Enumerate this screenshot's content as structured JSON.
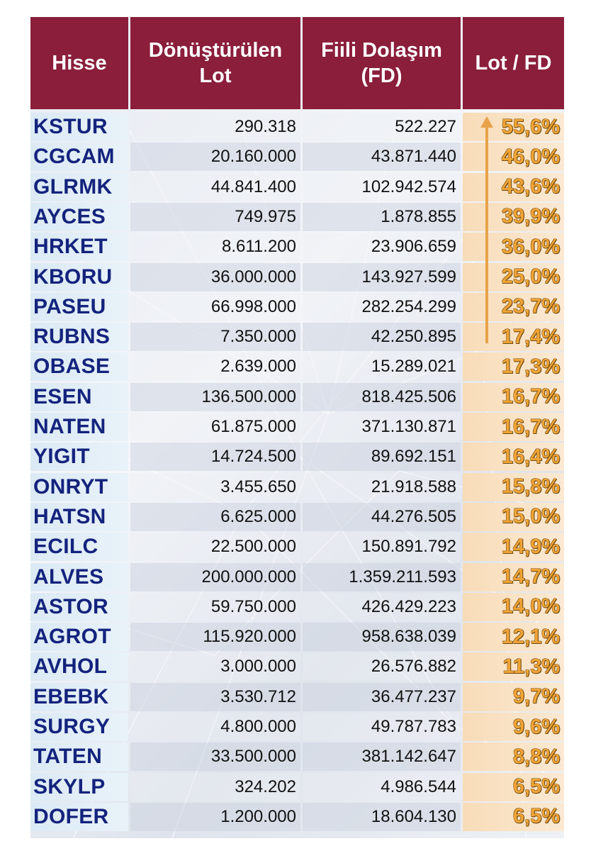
{
  "header": {
    "hisse": "Hisse",
    "lot_line1": "Dönüştürülen",
    "lot_line2": "Lot",
    "fd_line1": "Fiili Dolaşım",
    "fd_line2": "(FD)",
    "ratio": "Lot / FD"
  },
  "colors": {
    "header_bg": "#8a1e3b",
    "ticker_text": "#14237d",
    "ratio_text": "#f0a335",
    "arrow": "#e8a24a"
  },
  "rows": [
    {
      "ticker": "KSTUR",
      "lot": "290.318",
      "fd": "522.227",
      "ratio": "55,6%"
    },
    {
      "ticker": "CGCAM",
      "lot": "20.160.000",
      "fd": "43.871.440",
      "ratio": "46,0%"
    },
    {
      "ticker": "GLRMK",
      "lot": "44.841.400",
      "fd": "102.942.574",
      "ratio": "43,6%"
    },
    {
      "ticker": "AYCES",
      "lot": "749.975",
      "fd": "1.878.855",
      "ratio": "39,9%"
    },
    {
      "ticker": "HRKET",
      "lot": "8.611.200",
      "fd": "23.906.659",
      "ratio": "36,0%"
    },
    {
      "ticker": "KBORU",
      "lot": "36.000.000",
      "fd": "143.927.599",
      "ratio": "25,0%"
    },
    {
      "ticker": "PASEU",
      "lot": "66.998.000",
      "fd": "282.254.299",
      "ratio": "23,7%"
    },
    {
      "ticker": "RUBNS",
      "lot": "7.350.000",
      "fd": "42.250.895",
      "ratio": "17,4%"
    },
    {
      "ticker": "OBASE",
      "lot": "2.639.000",
      "fd": "15.289.021",
      "ratio": "17,3%"
    },
    {
      "ticker": "ESEN",
      "lot": "136.500.000",
      "fd": "818.425.506",
      "ratio": "16,7%"
    },
    {
      "ticker": "NATEN",
      "lot": "61.875.000",
      "fd": "371.130.871",
      "ratio": "16,7%"
    },
    {
      "ticker": "YIGIT",
      "lot": "14.724.500",
      "fd": "89.692.151",
      "ratio": "16,4%"
    },
    {
      "ticker": "ONRYT",
      "lot": "3.455.650",
      "fd": "21.918.588",
      "ratio": "15,8%"
    },
    {
      "ticker": "HATSN",
      "lot": "6.625.000",
      "fd": "44.276.505",
      "ratio": "15,0%"
    },
    {
      "ticker": "ECILC",
      "lot": "22.500.000",
      "fd": "150.891.792",
      "ratio": "14,9%"
    },
    {
      "ticker": "ALVES",
      "lot": "200.000.000",
      "fd": "1.359.211.593",
      "ratio": "14,7%"
    },
    {
      "ticker": "ASTOR",
      "lot": "59.750.000",
      "fd": "426.429.223",
      "ratio": "14,0%"
    },
    {
      "ticker": "AGROT",
      "lot": "115.920.000",
      "fd": "958.638.039",
      "ratio": "12,1%"
    },
    {
      "ticker": "AVHOL",
      "lot": "3.000.000",
      "fd": "26.576.882",
      "ratio": "11,3%"
    },
    {
      "ticker": "EBEBK",
      "lot": "3.530.712",
      "fd": "36.477.237",
      "ratio": "9,7%"
    },
    {
      "ticker": "SURGY",
      "lot": "4.800.000",
      "fd": "49.787.783",
      "ratio": "9,6%"
    },
    {
      "ticker": "TATEN",
      "lot": "33.500.000",
      "fd": "381.142.647",
      "ratio": "8,8%"
    },
    {
      "ticker": "SKYLP",
      "lot": "324.202",
      "fd": "4.986.544",
      "ratio": "6,5%"
    },
    {
      "ticker": "DOFER",
      "lot": "1.200.000",
      "fd": "18.604.130",
      "ratio": "6,5%"
    }
  ]
}
